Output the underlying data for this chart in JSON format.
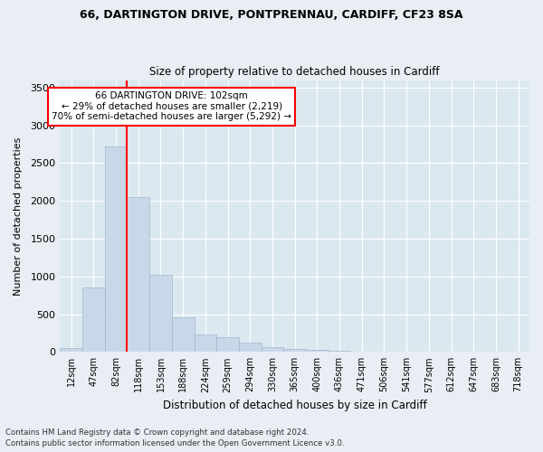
{
  "title1": "66, DARTINGTON DRIVE, PONTPRENNAU, CARDIFF, CF23 8SA",
  "title2": "Size of property relative to detached houses in Cardiff",
  "xlabel": "Distribution of detached houses by size in Cardiff",
  "ylabel": "Number of detached properties",
  "categories": [
    "12sqm",
    "47sqm",
    "82sqm",
    "118sqm",
    "153sqm",
    "188sqm",
    "224sqm",
    "259sqm",
    "294sqm",
    "330sqm",
    "365sqm",
    "400sqm",
    "436sqm",
    "471sqm",
    "506sqm",
    "541sqm",
    "577sqm",
    "612sqm",
    "647sqm",
    "683sqm",
    "718sqm"
  ],
  "values": [
    55,
    850,
    2720,
    2050,
    1020,
    460,
    235,
    195,
    120,
    60,
    45,
    25,
    10,
    0,
    0,
    0,
    0,
    0,
    0,
    0,
    0
  ],
  "bar_color": "#c8d8e8",
  "bar_edge_color": "#a0b8cc",
  "red_line_x": 2.5,
  "annotation_text": "66 DARTINGTON DRIVE: 102sqm\n← 29% of detached houses are smaller (2,219)\n70% of semi-detached houses are larger (5,292) →",
  "annotation_box_color": "white",
  "annotation_box_edgecolor": "red",
  "property_line_color": "red",
  "ylim": [
    0,
    3600
  ],
  "yticks": [
    0,
    500,
    1000,
    1500,
    2000,
    2500,
    3000,
    3500
  ],
  "footnote1": "Contains HM Land Registry data © Crown copyright and database right 2024.",
  "footnote2": "Contains public sector information licensed under the Open Government Licence v3.0.",
  "background_color": "#e8eef4",
  "plot_background_color": "#dce8f0",
  "fig_width": 6.0,
  "fig_height": 5.0,
  "dpi": 100
}
